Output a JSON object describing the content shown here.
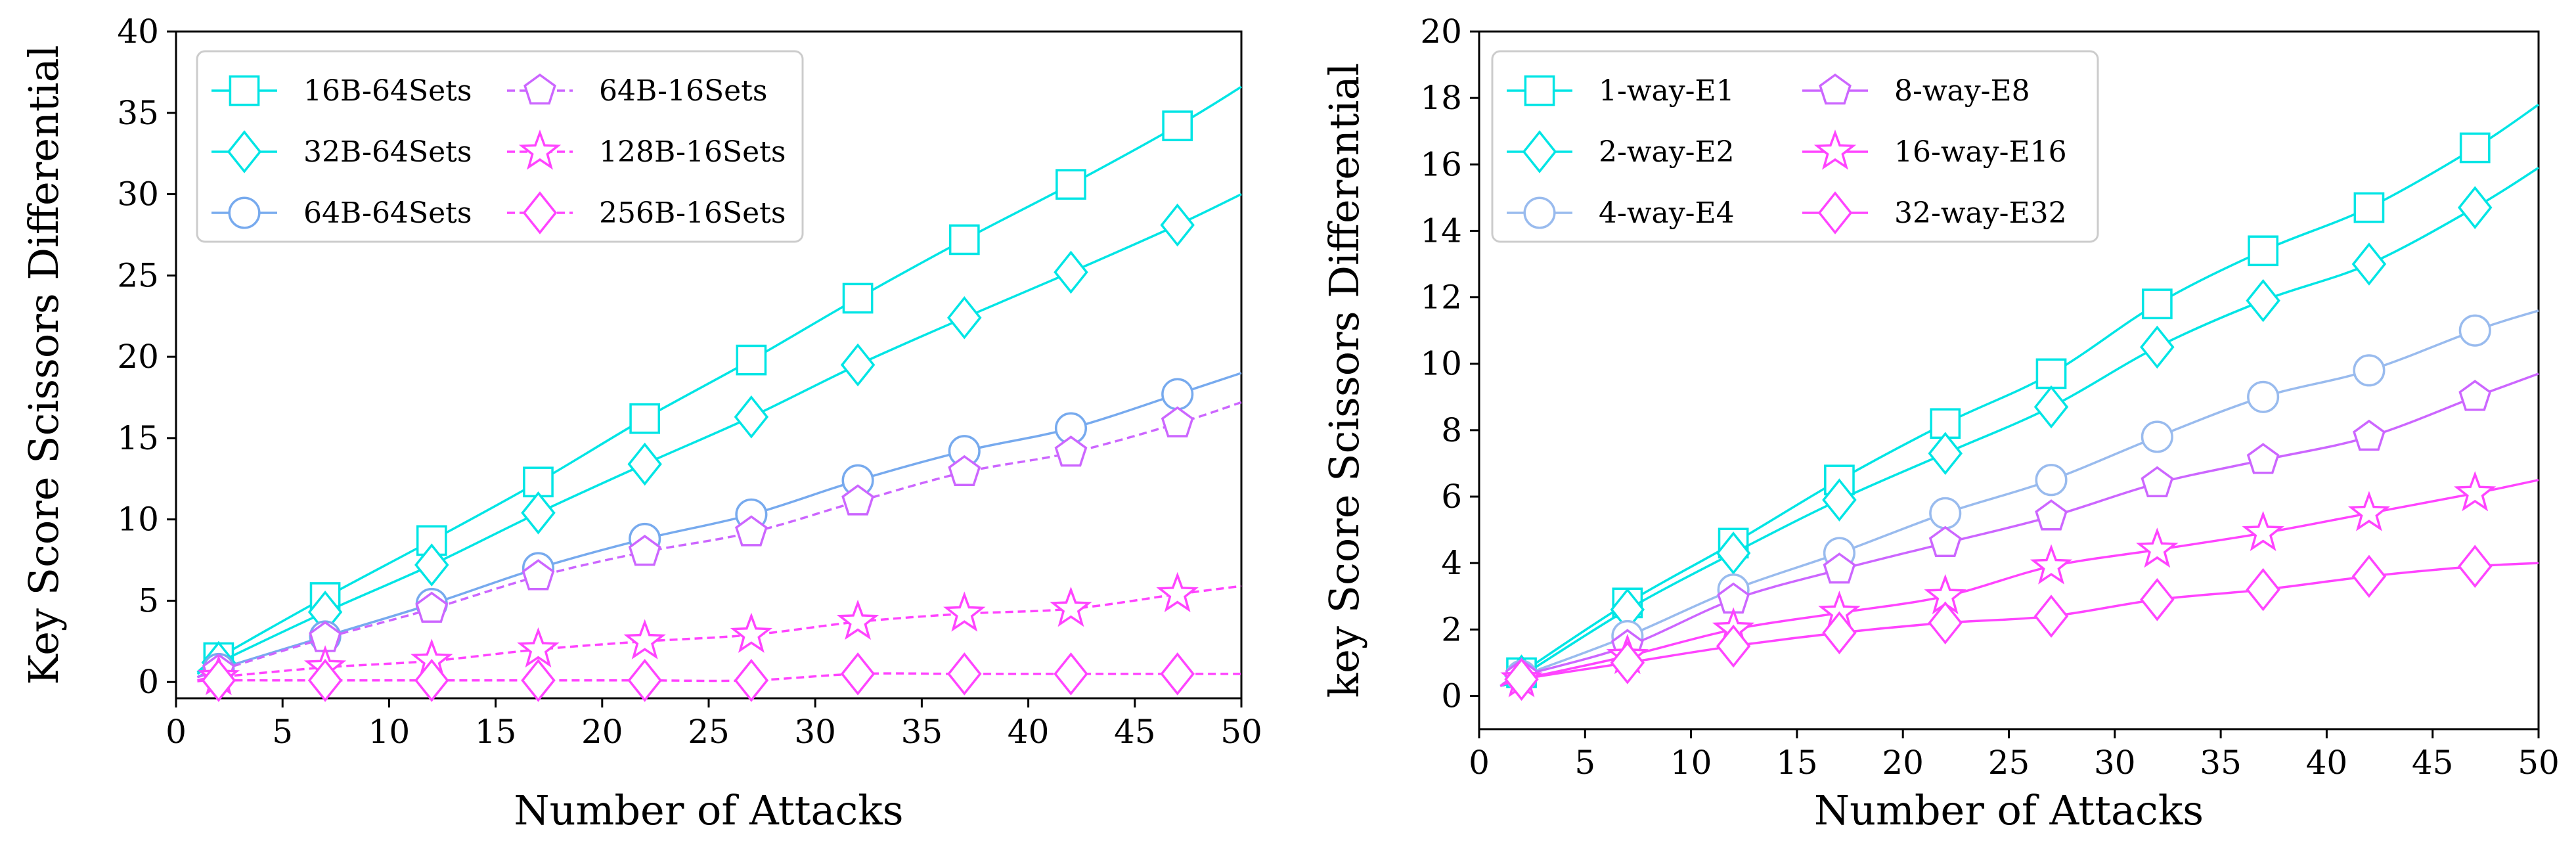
{
  "chart_data": [
    {
      "type": "line",
      "title": "",
      "xlabel": "Number of Attacks",
      "ylabel": "Key Score Scissors Differential",
      "xlim": [
        0,
        50
      ],
      "ylim": [
        -1,
        40
      ],
      "xticks": [
        0,
        5,
        10,
        15,
        20,
        25,
        30,
        35,
        40,
        45,
        50
      ],
      "yticks": [
        0,
        5,
        10,
        15,
        20,
        25,
        30,
        35,
        40
      ],
      "grid": false,
      "legend_position": "top-left",
      "legend_columns": 2,
      "x": [
        1,
        2,
        7,
        12,
        17,
        22,
        27,
        32,
        37,
        42,
        47,
        50
      ],
      "series": [
        {
          "name": "16B-64Sets",
          "color": "#00e5e5",
          "marker": "square",
          "dash": false,
          "values": [
            0.6,
            1.5,
            5.2,
            8.7,
            12.3,
            16.2,
            19.8,
            23.6,
            27.2,
            30.6,
            34.2,
            36.6
          ]
        },
        {
          "name": "32B-64Sets",
          "color": "#00e5e5",
          "marker": "diamond",
          "dash": false,
          "values": [
            0.5,
            1.2,
            4.3,
            7.2,
            10.4,
            13.4,
            16.3,
            19.5,
            22.4,
            25.2,
            28.1,
            30.0
          ]
        },
        {
          "name": "64B-64Sets",
          "color": "#77aaee",
          "marker": "circle",
          "dash": false,
          "values": [
            0.3,
            0.8,
            2.8,
            4.8,
            7.0,
            8.8,
            10.3,
            12.4,
            14.2,
            15.6,
            17.7,
            19.0
          ]
        },
        {
          "name": "64B-16Sets",
          "color": "#cc66ff",
          "marker": "pentagon",
          "dash": true,
          "values": [
            0.3,
            0.7,
            2.7,
            4.5,
            6.5,
            8.0,
            9.2,
            11.1,
            12.9,
            14.1,
            15.9,
            17.2
          ]
        },
        {
          "name": "128B-16Sets",
          "color": "#ff44ff",
          "marker": "star",
          "dash": true,
          "values": [
            0.1,
            0.3,
            0.9,
            1.3,
            2.0,
            2.5,
            2.9,
            3.7,
            4.2,
            4.5,
            5.4,
            5.9
          ]
        },
        {
          "name": "256B-16Sets",
          "color": "#ff44ff",
          "marker": "diamond",
          "dash": true,
          "values": [
            0.05,
            0.1,
            0.1,
            0.1,
            0.1,
            0.1,
            0.1,
            0.5,
            0.5,
            0.5,
            0.5,
            0.5
          ]
        }
      ]
    },
    {
      "type": "line",
      "title": "",
      "xlabel": "Number of Attacks",
      "ylabel": "key Score Scissors Differential",
      "xlim": [
        0,
        50
      ],
      "ylim": [
        -1,
        20
      ],
      "xticks": [
        0,
        5,
        10,
        15,
        20,
        25,
        30,
        35,
        40,
        45,
        50
      ],
      "yticks": [
        0,
        2,
        4,
        6,
        8,
        10,
        12,
        14,
        16,
        18,
        20
      ],
      "grid": false,
      "legend_position": "top-left",
      "legend_columns": 2,
      "x": [
        1,
        2,
        7,
        12,
        17,
        22,
        27,
        32,
        37,
        42,
        47,
        50
      ],
      "series": [
        {
          "name": "1-way-E1",
          "color": "#00e5e5",
          "marker": "square",
          "dash": false,
          "values": [
            0.3,
            0.7,
            2.8,
            4.6,
            6.5,
            8.2,
            9.7,
            11.8,
            13.4,
            14.7,
            16.5,
            17.8
          ]
        },
        {
          "name": "2-way-E2",
          "color": "#00e5e5",
          "marker": "diamond",
          "dash": false,
          "values": [
            0.3,
            0.6,
            2.6,
            4.3,
            5.9,
            7.3,
            8.7,
            10.5,
            11.9,
            13.0,
            14.7,
            15.9
          ]
        },
        {
          "name": "4-way-E4",
          "color": "#99bbee",
          "marker": "circle",
          "dash": false,
          "values": [
            0.3,
            0.6,
            1.8,
            3.2,
            4.3,
            5.5,
            6.5,
            7.8,
            9.0,
            9.8,
            11.0,
            11.6
          ]
        },
        {
          "name": "8-way-E8",
          "color": "#cc66ff",
          "marker": "pentagon",
          "dash": false,
          "values": [
            0.3,
            0.6,
            1.5,
            2.9,
            3.8,
            4.6,
            5.4,
            6.4,
            7.1,
            7.8,
            9.0,
            9.7
          ]
        },
        {
          "name": "16-way-E16",
          "color": "#ff44ff",
          "marker": "star",
          "dash": false,
          "values": [
            0.3,
            0.5,
            1.2,
            2.0,
            2.5,
            3.0,
            3.9,
            4.4,
            4.9,
            5.5,
            6.1,
            6.5
          ]
        },
        {
          "name": "32-way-E32",
          "color": "#ff44ff",
          "marker": "diamond",
          "dash": false,
          "values": [
            0.3,
            0.5,
            1.0,
            1.5,
            1.9,
            2.2,
            2.4,
            2.9,
            3.2,
            3.6,
            3.9,
            4.0
          ]
        }
      ]
    }
  ]
}
